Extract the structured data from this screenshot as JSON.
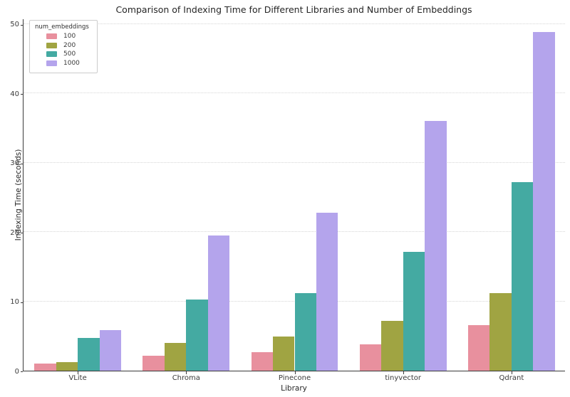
{
  "chart_data": {
    "type": "bar",
    "title": "Comparison of Indexing Time for Different Libraries and Number of Embeddings",
    "xlabel": "Library",
    "ylabel": "Indexing Time (seconds)",
    "legend_title": "num_embeddings",
    "legend_position": "upper-left",
    "grid": "horizontal-dotted",
    "categories": [
      "VLite",
      "Chroma",
      "Pinecone",
      "tinyvector",
      "Qdrant"
    ],
    "series": [
      {
        "name": "100",
        "color": "#e8909e",
        "values": [
          1.0,
          2.2,
          2.7,
          3.8,
          6.6
        ]
      },
      {
        "name": "200",
        "color": "#a0a442",
        "values": [
          1.2,
          4.0,
          4.9,
          7.2,
          11.2
        ]
      },
      {
        "name": "500",
        "color": "#44aaa2",
        "values": [
          4.7,
          10.3,
          11.2,
          17.1,
          27.2
        ]
      },
      {
        "name": "1000",
        "color": "#b4a4ec",
        "values": [
          5.9,
          19.5,
          22.8,
          36.0,
          48.9
        ]
      }
    ],
    "yticks": [
      0,
      10,
      20,
      30,
      40,
      50
    ],
    "ylim": [
      0,
      50.8
    ]
  }
}
